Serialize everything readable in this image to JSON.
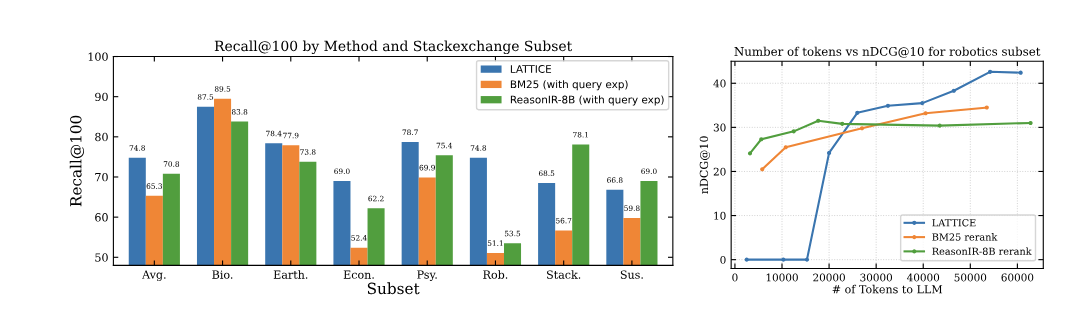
{
  "chart_data": [
    {
      "type": "bar",
      "title": "Recall@100 by Method and Stackexchange Subset",
      "xlabel": "Subset",
      "ylabel": "Recall@100",
      "categories": [
        "Avg.",
        "Bio.",
        "Earth.",
        "Econ.",
        "Psy.",
        "Rob.",
        "Stack.",
        "Sus."
      ],
      "ylim": [
        48,
        100
      ],
      "yticks": [
        50,
        60,
        70,
        80,
        90,
        100
      ],
      "grid": false,
      "legend": "top right",
      "series": [
        {
          "name": "LATTICE",
          "color": "#3a75af",
          "values": [
            74.8,
            87.5,
            78.4,
            69.0,
            78.7,
            74.8,
            68.5,
            66.8
          ],
          "value_labels": [
            "74.8",
            "87.5",
            "78.4",
            "69.0",
            "78.7",
            "74.8",
            "68.5",
            "66.8"
          ]
        },
        {
          "name": "BM25 (with query exp)",
          "color": "#ef8636",
          "values": [
            65.3,
            89.5,
            77.9,
            52.4,
            69.9,
            51.1,
            56.7,
            59.8
          ],
          "value_labels": [
            "65.3",
            "89.5",
            "77.9",
            "52.4",
            "69.9",
            "51.1",
            "56.7",
            "59.8"
          ]
        },
        {
          "name": "ReasonIR-8B (with query exp)",
          "color": "#519e3e",
          "values": [
            70.8,
            83.8,
            73.8,
            62.2,
            75.4,
            53.5,
            78.1,
            69.0
          ],
          "value_labels": [
            "70.8",
            "83.8",
            "73.8",
            "62.2",
            "75.4",
            "53.5",
            "78.1",
            "69.0"
          ]
        }
      ]
    },
    {
      "type": "line",
      "title": "Number of tokens vs nDCG@10 for robotics subset",
      "xlabel": "# of Tokens to LLM",
      "ylabel": "nDCG@10",
      "xlim": [
        -800,
        65500
      ],
      "xticks": [
        0,
        10000,
        20000,
        30000,
        40000,
        50000,
        60000
      ],
      "ylim": [
        -2,
        45
      ],
      "yticks": [
        0,
        10,
        20,
        30,
        40
      ],
      "grid": true,
      "legend": "bottom right",
      "marker": "circle",
      "line_style": "solid",
      "series": [
        {
          "name": "LATTICE",
          "color": "#3a75af",
          "x": [
            2500,
            10300,
            15300,
            20000,
            26000,
            32500,
            39800,
            46500,
            54200,
            60700
          ],
          "values": [
            0,
            0,
            0,
            24.2,
            33.3,
            34.9,
            35.5,
            38.3,
            42.6,
            42.4
          ]
        },
        {
          "name": "BM25 rerank",
          "color": "#ef8636",
          "x": [
            5800,
            10800,
            27000,
            40500,
            53500
          ],
          "values": [
            20.5,
            25.5,
            29.8,
            33.2,
            34.5
          ]
        },
        {
          "name": "ReasonIR-8B rerank",
          "color": "#519e3e",
          "x": [
            3200,
            5600,
            12500,
            17700,
            22800,
            43500,
            62800
          ],
          "values": [
            24.1,
            27.3,
            29.1,
            31.5,
            30.8,
            30.4,
            31.0
          ]
        }
      ]
    }
  ]
}
